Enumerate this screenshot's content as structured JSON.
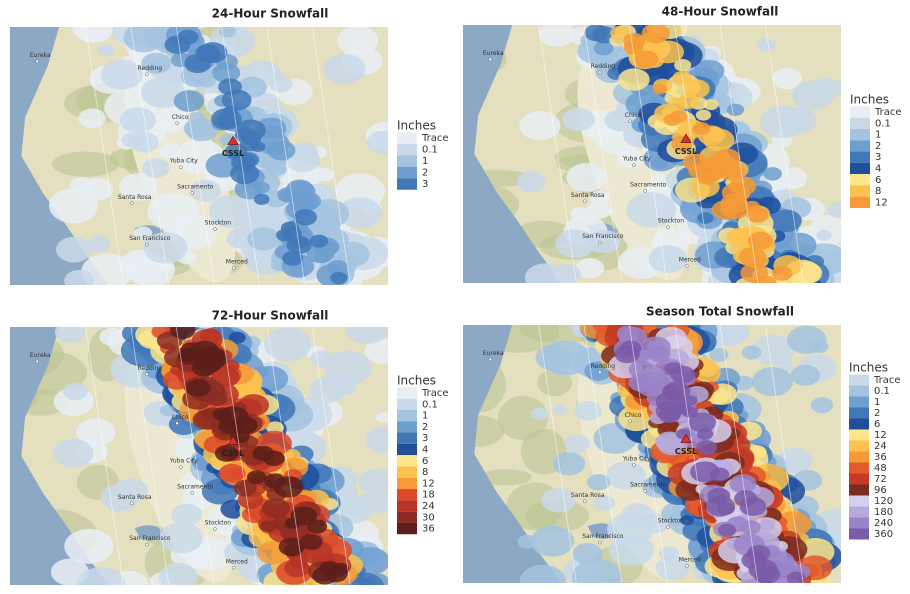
{
  "panels": [
    {
      "title": "24-Hour Snowfall",
      "legend": {
        "title": "Inches",
        "items": [
          {
            "label": "Trace",
            "color": "#e9eef4"
          },
          {
            "label": "0.1",
            "color": "#c9d9ea"
          },
          {
            "label": "1",
            "color": "#a3c3df"
          },
          {
            "label": "2",
            "color": "#6f9fd0"
          },
          {
            "label": "3",
            "color": "#3f77b7"
          }
        ]
      },
      "places": [
        "Eureka",
        "Redding",
        "Chico",
        "Yuba City",
        "Sacramento",
        "Santa Rosa",
        "Stockton",
        "San Francisco",
        "Merced",
        "CSSL"
      ]
    },
    {
      "title": "48-Hour Snowfall",
      "legend": {
        "title": "Inches",
        "items": [
          {
            "label": "Trace",
            "color": "#e9eef4"
          },
          {
            "label": "0.1",
            "color": "#c9d9ea"
          },
          {
            "label": "1",
            "color": "#a3c3df"
          },
          {
            "label": "2",
            "color": "#6f9fd0"
          },
          {
            "label": "3",
            "color": "#3f77b7"
          },
          {
            "label": "4",
            "color": "#1f4e9b"
          },
          {
            "label": "6",
            "color": "#fde58c"
          },
          {
            "label": "8",
            "color": "#fbc24d"
          },
          {
            "label": "12",
            "color": "#f59a36"
          }
        ]
      },
      "places": [
        "Eureka",
        "Redding",
        "Chico",
        "Yuba City",
        "Sacramento",
        "Santa Rosa",
        "Stockton",
        "San Francisco",
        "Merced",
        "CSSL"
      ]
    },
    {
      "title": "72-Hour Snowfall",
      "legend": {
        "title": "Inches",
        "items": [
          {
            "label": "Trace",
            "color": "#e9eef4"
          },
          {
            "label": "0.1",
            "color": "#c9d9ea"
          },
          {
            "label": "1",
            "color": "#a3c3df"
          },
          {
            "label": "2",
            "color": "#6f9fd0"
          },
          {
            "label": "3",
            "color": "#3f77b7"
          },
          {
            "label": "4",
            "color": "#1f4e9b"
          },
          {
            "label": "6",
            "color": "#fde58c"
          },
          {
            "label": "8",
            "color": "#fbc24d"
          },
          {
            "label": "12",
            "color": "#f59a36"
          },
          {
            "label": "18",
            "color": "#dc4a2c"
          },
          {
            "label": "24",
            "color": "#b93427"
          },
          {
            "label": "30",
            "color": "#8c2b22"
          },
          {
            "label": "36",
            "color": "#5b1e1a"
          }
        ]
      },
      "places": [
        "Eureka",
        "Redding",
        "Chico",
        "Yuba City",
        "Sacramento",
        "Santa Rosa",
        "Stockton",
        "San Francisco",
        "Merced",
        "CSSL"
      ]
    },
    {
      "title": "Season Total Snowfall",
      "legend": {
        "title": "Inches",
        "items": [
          {
            "label": "Trace",
            "color": "#c9d9ea"
          },
          {
            "label": "0.1",
            "color": "#a3c3df"
          },
          {
            "label": "1",
            "color": "#6f9fd0"
          },
          {
            "label": "2",
            "color": "#3f77b7"
          },
          {
            "label": "6",
            "color": "#1f4e9b"
          },
          {
            "label": "12",
            "color": "#fde58c"
          },
          {
            "label": "24",
            "color": "#fbc24d"
          },
          {
            "label": "36",
            "color": "#f59a36"
          },
          {
            "label": "48",
            "color": "#e2592c"
          },
          {
            "label": "72",
            "color": "#c23b27"
          },
          {
            "label": "96",
            "color": "#7b2b20"
          },
          {
            "label": "120",
            "color": "#d6d0ee"
          },
          {
            "label": "180",
            "color": "#b6aadd"
          },
          {
            "label": "240",
            "color": "#9a84c9"
          },
          {
            "label": "360",
            "color": "#7a5ba8"
          }
        ]
      },
      "places": [
        "Eureka",
        "Redding",
        "Chico",
        "Yuba City",
        "Sacramento",
        "Santa Rosa",
        "Stockton",
        "San Francisco",
        "Merced",
        "CSSL"
      ]
    }
  ]
}
